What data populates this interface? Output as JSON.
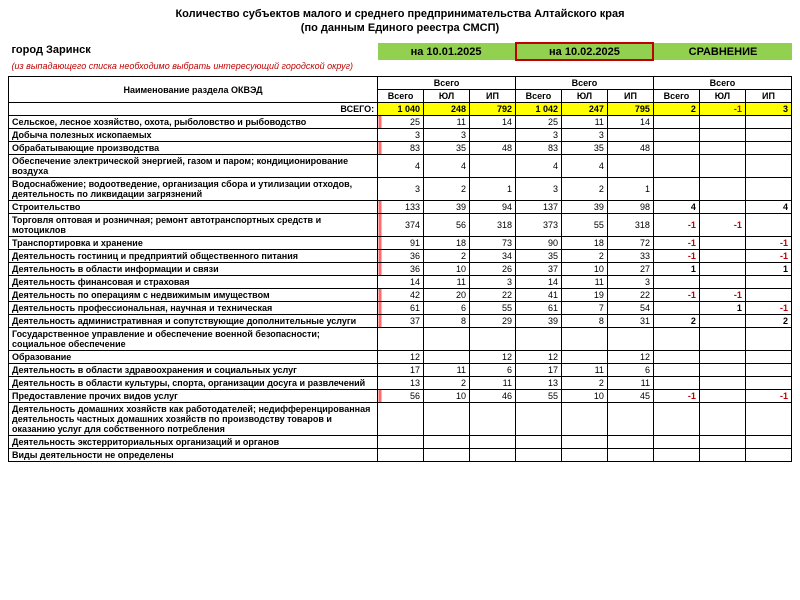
{
  "title": "Количество субъектов малого и среднего предпринимательства Алтайского края",
  "subtitle": "(по данным Единого реестра СМСП)",
  "city": "город Заринск",
  "note": "(из выпадающего списка необходимо выбрать интересующий городской округ)",
  "period1": "на 10.01.2025",
  "period2": "на 10.02.2025",
  "compare": "СРАВНЕНИЕ",
  "rowHeader": "Наименование раздела ОКВЭД",
  "groupHeader": "Всего",
  "col_vsego": "Всего",
  "col_yul": "ЮЛ",
  "col_ip": "ИП",
  "total_label": "ВСЕГО:",
  "total": {
    "p1": [
      "1 040",
      "248",
      "792"
    ],
    "p2": [
      "1 042",
      "247",
      "795"
    ],
    "cmp": [
      "2",
      "-1",
      "3"
    ]
  },
  "rows": [
    {
      "name": "Сельское, лесное хозяйство, охота, рыболовство и рыбоводство",
      "p1": [
        "25",
        "11",
        "14"
      ],
      "p2": [
        "25",
        "11",
        "14"
      ],
      "cmp": [
        "",
        "",
        ""
      ],
      "m": 1
    },
    {
      "name": "Добыча полезных ископаемых",
      "p1": [
        "3",
        "3",
        ""
      ],
      "p2": [
        "3",
        "3",
        ""
      ],
      "cmp": [
        "",
        "",
        ""
      ],
      "m": 0
    },
    {
      "name": "Обрабатывающие производства",
      "p1": [
        "83",
        "35",
        "48"
      ],
      "p2": [
        "83",
        "35",
        "48"
      ],
      "cmp": [
        "",
        "",
        ""
      ],
      "m": 1
    },
    {
      "name": "Обеспечение электрической энергией, газом и паром; кондиционирование воздуха",
      "p1": [
        "4",
        "4",
        ""
      ],
      "p2": [
        "4",
        "4",
        ""
      ],
      "cmp": [
        "",
        "",
        ""
      ],
      "m": 0
    },
    {
      "name": "Водоснабжение; водоотведение, организация сбора и утилизации отходов, деятельность по ликвидации загрязнений",
      "p1": [
        "3",
        "2",
        "1"
      ],
      "p2": [
        "3",
        "2",
        "1"
      ],
      "cmp": [
        "",
        "",
        ""
      ],
      "m": 0
    },
    {
      "name": "Строительство",
      "p1": [
        "133",
        "39",
        "94"
      ],
      "p2": [
        "137",
        "39",
        "98"
      ],
      "cmp": [
        "4",
        "",
        "4"
      ],
      "m": 1
    },
    {
      "name": "Торговля оптовая и розничная; ремонт автотранспортных средств и мотоциклов",
      "p1": [
        "374",
        "56",
        "318"
      ],
      "p2": [
        "373",
        "55",
        "318"
      ],
      "cmp": [
        "-1",
        "-1",
        ""
      ],
      "m": 1
    },
    {
      "name": "Транспортировка и хранение",
      "p1": [
        "91",
        "18",
        "73"
      ],
      "p2": [
        "90",
        "18",
        "72"
      ],
      "cmp": [
        "-1",
        "",
        "-1"
      ],
      "m": 1
    },
    {
      "name": "Деятельность гостиниц и предприятий общественного питания",
      "p1": [
        "36",
        "2",
        "34"
      ],
      "p2": [
        "35",
        "2",
        "33"
      ],
      "cmp": [
        "-1",
        "",
        "-1"
      ],
      "m": 1
    },
    {
      "name": "Деятельность в области информации и связи",
      "p1": [
        "36",
        "10",
        "26"
      ],
      "p2": [
        "37",
        "10",
        "27"
      ],
      "cmp": [
        "1",
        "",
        "1"
      ],
      "m": 1
    },
    {
      "name": "Деятельность финансовая и страховая",
      "p1": [
        "14",
        "11",
        "3"
      ],
      "p2": [
        "14",
        "11",
        "3"
      ],
      "cmp": [
        "",
        "",
        ""
      ],
      "m": 0
    },
    {
      "name": "Деятельность по операциям с недвижимым имуществом",
      "p1": [
        "42",
        "20",
        "22"
      ],
      "p2": [
        "41",
        "19",
        "22"
      ],
      "cmp": [
        "-1",
        "-1",
        ""
      ],
      "m": 1
    },
    {
      "name": "Деятельность профессиональная, научная и техническая",
      "p1": [
        "61",
        "6",
        "55"
      ],
      "p2": [
        "61",
        "7",
        "54"
      ],
      "cmp": [
        "",
        "1",
        "-1"
      ],
      "m": 1
    },
    {
      "name": "Деятельность административная и сопутствующие дополнительные услуги",
      "p1": [
        "37",
        "8",
        "29"
      ],
      "p2": [
        "39",
        "8",
        "31"
      ],
      "cmp": [
        "2",
        "",
        "2"
      ],
      "m": 1
    },
    {
      "name": "Государственное управление и обеспечение военной безопасности; социальное обеспечение",
      "p1": [
        "",
        "",
        ""
      ],
      "p2": [
        "",
        "",
        ""
      ],
      "cmp": [
        "",
        "",
        ""
      ],
      "m": 0
    },
    {
      "name": "Образование",
      "p1": [
        "12",
        "",
        "12"
      ],
      "p2": [
        "12",
        "",
        "12"
      ],
      "cmp": [
        "",
        "",
        ""
      ],
      "m": 0
    },
    {
      "name": "Деятельность в области здравоохранения и социальных услуг",
      "p1": [
        "17",
        "11",
        "6"
      ],
      "p2": [
        "17",
        "11",
        "6"
      ],
      "cmp": [
        "",
        "",
        ""
      ],
      "m": 0
    },
    {
      "name": "Деятельность в области культуры, спорта, организации досуга и развлечений",
      "p1": [
        "13",
        "2",
        "11"
      ],
      "p2": [
        "13",
        "2",
        "11"
      ],
      "cmp": [
        "",
        "",
        ""
      ],
      "m": 0
    },
    {
      "name": "Предоставление прочих видов услуг",
      "p1": [
        "56",
        "10",
        "46"
      ],
      "p2": [
        "55",
        "10",
        "45"
      ],
      "cmp": [
        "-1",
        "",
        "-1"
      ],
      "m": 1
    },
    {
      "name": "Деятельность домашних хозяйств как работодателей; недифференцированная деятельность частных домашних хозяйств по производству товаров и оказанию услуг для собственного потребления",
      "p1": [
        "",
        "",
        ""
      ],
      "p2": [
        "",
        "",
        ""
      ],
      "cmp": [
        "",
        "",
        ""
      ],
      "m": 0
    },
    {
      "name": "Деятельность экстерриториальных организаций и органов",
      "p1": [
        "",
        "",
        ""
      ],
      "p2": [
        "",
        "",
        ""
      ],
      "cmp": [
        "",
        "",
        ""
      ],
      "m": 0
    },
    {
      "name": "Виды деятельности не определены",
      "p1": [
        "",
        "",
        ""
      ],
      "p2": [
        "",
        "",
        ""
      ],
      "cmp": [
        "",
        "",
        ""
      ],
      "m": 0
    }
  ],
  "colors": {
    "green": "#92d050",
    "yellow": "#ffff00",
    "redBorder": "#c00000",
    "negText": "#c00000",
    "markerRed": "#ff6b6b"
  },
  "fonts": {
    "base_pt": 9,
    "title_pt": 11
  }
}
